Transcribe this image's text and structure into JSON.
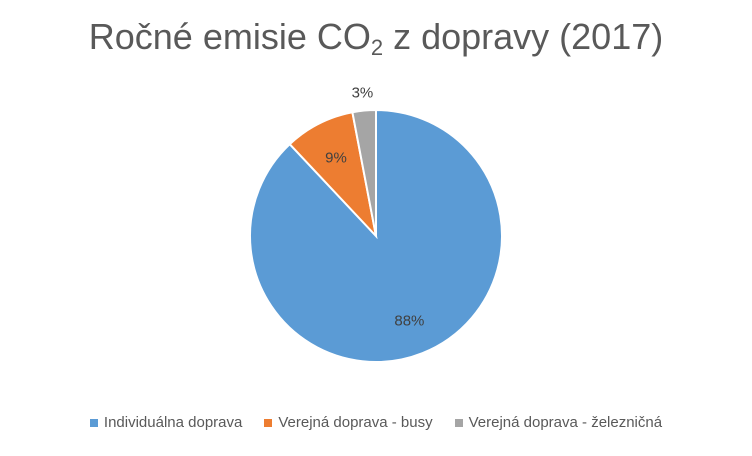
{
  "chart_data": {
    "type": "pie",
    "title_main": "Ročné emisie CO",
    "title_sub": "2",
    "title_rest": " z dopravy (2017)",
    "categories": [
      "Individuálna doprava",
      "Verejná doprava - busy",
      "Verejná doprava - železničná"
    ],
    "values": [
      88,
      9,
      3
    ],
    "data_labels": [
      "88%",
      "9%",
      "3%"
    ],
    "colors": [
      "#5b9bd5",
      "#ed7d31",
      "#a5a5a5"
    ],
    "legend_position": "bottom"
  }
}
